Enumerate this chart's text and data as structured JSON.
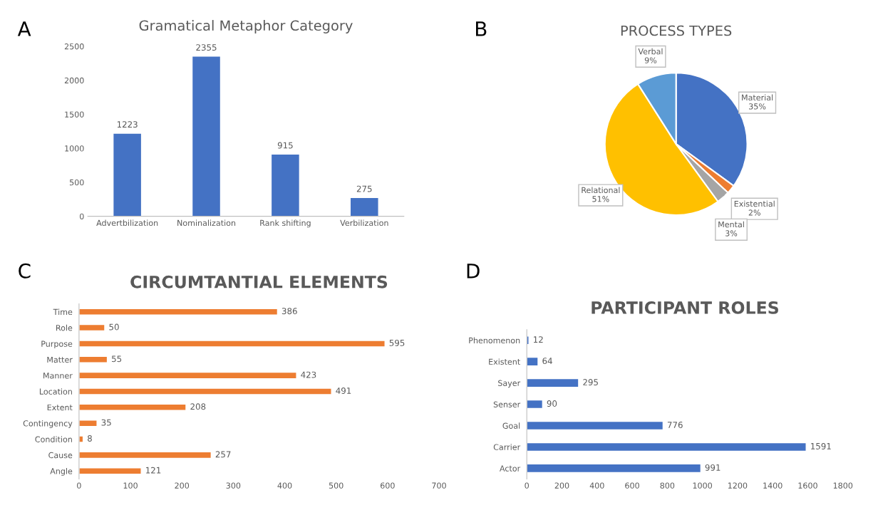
{
  "chart_data": [
    {
      "type": "bar",
      "title": "Gramatical Metaphor Category",
      "annotations": [
        "A"
      ],
      "categories": [
        "Advertbilization",
        "Nominalization",
        "Rank shifting",
        "Verbilization"
      ],
      "values": [
        1223,
        2355,
        915,
        275
      ],
      "color": "#4472c4",
      "ylim": [
        0,
        2500
      ],
      "yticks": [
        0,
        500,
        1000,
        1500,
        2000,
        2500
      ],
      "data_labels": true
    },
    {
      "type": "pie",
      "title": "PROCESS TYPES",
      "annotations": [
        "B"
      ],
      "categories": [
        "Material",
        "Existential",
        "Mental",
        "Relational",
        "Verbal"
      ],
      "values": [
        35,
        2,
        3,
        51,
        9
      ],
      "value_labels": [
        "35%",
        "2%",
        "3%",
        "51%",
        "9%"
      ],
      "colors": [
        "#4472c4",
        "#ed7d31",
        "#a5a5a5",
        "#ffc000",
        "#5b9bd5"
      ]
    },
    {
      "type": "bar",
      "orientation": "horizontal",
      "title": "CIRCUMTANTIAL ELEMENTS",
      "annotations": [
        "C"
      ],
      "categories": [
        "Time",
        "Role",
        "Purpose",
        "Matter",
        "Manner",
        "Location",
        "Extent",
        "Contingency",
        "Condition",
        "Cause",
        "Angle"
      ],
      "values": [
        386,
        50,
        595,
        55,
        423,
        491,
        208,
        35,
        8,
        257,
        121
      ],
      "color": "#ed7d31",
      "xlim": [
        0,
        700
      ],
      "xticks": [
        0,
        100,
        200,
        300,
        400,
        500,
        600,
        700
      ],
      "data_labels": true
    },
    {
      "type": "bar",
      "orientation": "horizontal",
      "title": "PARTICIPANT ROLES",
      "annotations": [
        "D"
      ],
      "categories": [
        "Phenomenon",
        "Existent",
        "Sayer",
        "Senser",
        "Goal",
        "Carrier",
        "Actor"
      ],
      "values": [
        12,
        64,
        295,
        90,
        776,
        1591,
        991
      ],
      "color": "#4472c4",
      "xlim": [
        0,
        1800
      ],
      "xticks": [
        0,
        200,
        400,
        600,
        800,
        1000,
        1200,
        1400,
        1600,
        1800
      ],
      "data_labels": true
    }
  ]
}
